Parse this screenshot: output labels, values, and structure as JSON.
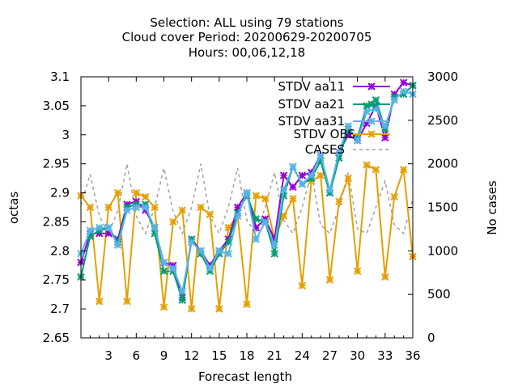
{
  "chart_data": {
    "type": "line",
    "title_lines": [
      "Selection: ALL using    79 stations",
      "Cloud cover   Period: 20200629-20200705",
      "Hours:  00,06,12,18"
    ],
    "xlabel": "Forecast length",
    "ylabel": "octas",
    "y2label": "No cases",
    "xlim": [
      0,
      36
    ],
    "ylim": [
      2.65,
      3.1
    ],
    "y2lim": [
      0,
      3000
    ],
    "xticks": [
      3,
      6,
      9,
      12,
      15,
      18,
      21,
      24,
      27,
      30,
      33,
      36
    ],
    "yticks": [
      2.65,
      2.7,
      2.75,
      2.8,
      2.85,
      2.9,
      2.95,
      3,
      3.05,
      3.1
    ],
    "ytick_labels": [
      "2.65",
      "2.7",
      "2.75",
      "2.8",
      "2.85",
      "2.9",
      "2.95",
      "3",
      "3.05",
      "3.1"
    ],
    "y2ticks": [
      0,
      500,
      1000,
      1500,
      2000,
      2500,
      3000
    ],
    "grid": false,
    "legend_position": "top-right",
    "x": [
      0,
      1,
      2,
      3,
      4,
      5,
      6,
      7,
      8,
      9,
      10,
      11,
      12,
      13,
      14,
      15,
      16,
      17,
      18,
      19,
      20,
      21,
      22,
      23,
      24,
      25,
      26,
      27,
      28,
      29,
      30,
      31,
      32,
      33,
      34,
      35,
      36
    ],
    "series": [
      {
        "name": "STDV aa11",
        "axis": "y",
        "color": "#9400d3",
        "marker": "x",
        "values": [
          2.78,
          2.83,
          2.83,
          2.83,
          2.82,
          2.88,
          2.885,
          2.87,
          2.84,
          2.78,
          2.775,
          2.72,
          2.82,
          2.8,
          2.775,
          2.8,
          2.82,
          2.875,
          2.9,
          2.84,
          2.855,
          2.82,
          2.93,
          2.91,
          2.93,
          2.935,
          2.965,
          2.9,
          2.97,
          3.0,
          2.99,
          3.02,
          3.05,
          2.995,
          3.07,
          3.09,
          3.085
        ]
      },
      {
        "name": "STDV aa21",
        "axis": "y",
        "color": "#009e73",
        "marker": "x",
        "values": [
          2.755,
          2.825,
          2.835,
          2.84,
          2.815,
          2.875,
          2.88,
          2.88,
          2.83,
          2.765,
          2.765,
          2.715,
          2.82,
          2.795,
          2.765,
          2.795,
          2.815,
          2.865,
          2.895,
          2.855,
          2.85,
          2.795,
          2.895,
          2.945,
          2.915,
          2.925,
          2.955,
          2.9,
          2.96,
          3.01,
          2.995,
          3.05,
          3.06,
          3.01,
          3.065,
          3.07,
          3.085
        ]
      },
      {
        "name": "STDV aa31",
        "axis": "y",
        "color": "#56b4e9",
        "marker": "x",
        "values": [
          2.795,
          2.835,
          2.84,
          2.84,
          2.81,
          2.87,
          2.875,
          2.875,
          2.84,
          2.78,
          2.77,
          2.73,
          2.815,
          2.8,
          2.77,
          2.8,
          2.795,
          2.86,
          2.9,
          2.82,
          2.85,
          2.81,
          2.905,
          2.945,
          2.915,
          2.93,
          2.965,
          2.905,
          2.97,
          3.015,
          2.99,
          3.04,
          3.045,
          3.015,
          3.06,
          3.075,
          3.07
        ]
      },
      {
        "name": "STDV OBS",
        "axis": "y",
        "color": "#e69f00",
        "marker": "x",
        "values": [
          2.895,
          2.875,
          2.713,
          2.875,
          2.9,
          2.713,
          2.9,
          2.893,
          2.875,
          2.703,
          2.85,
          2.87,
          2.7,
          2.875,
          2.863,
          2.7,
          2.84,
          2.86,
          2.708,
          2.895,
          2.89,
          2.82,
          2.86,
          2.89,
          2.74,
          2.92,
          2.93,
          2.75,
          2.885,
          2.925,
          2.765,
          2.948,
          2.94,
          2.755,
          2.893,
          2.94,
          2.79
        ]
      },
      {
        "name": "CASES",
        "axis": "y2",
        "color": "#a0a0a0",
        "dashed": true,
        "values": [
          1520,
          1880,
          1400,
          1200,
          1460,
          2000,
          1400,
          1200,
          1500,
          1950,
          1450,
          1200,
          1500,
          2000,
          1400,
          1200,
          1500,
          1950,
          1350,
          1200,
          1500,
          1900,
          1350,
          1200,
          1500,
          1900,
          1300,
          1200,
          1500,
          1900,
          1250,
          1200,
          1500,
          1800,
          1300,
          1200,
          1600
        ]
      }
    ]
  }
}
